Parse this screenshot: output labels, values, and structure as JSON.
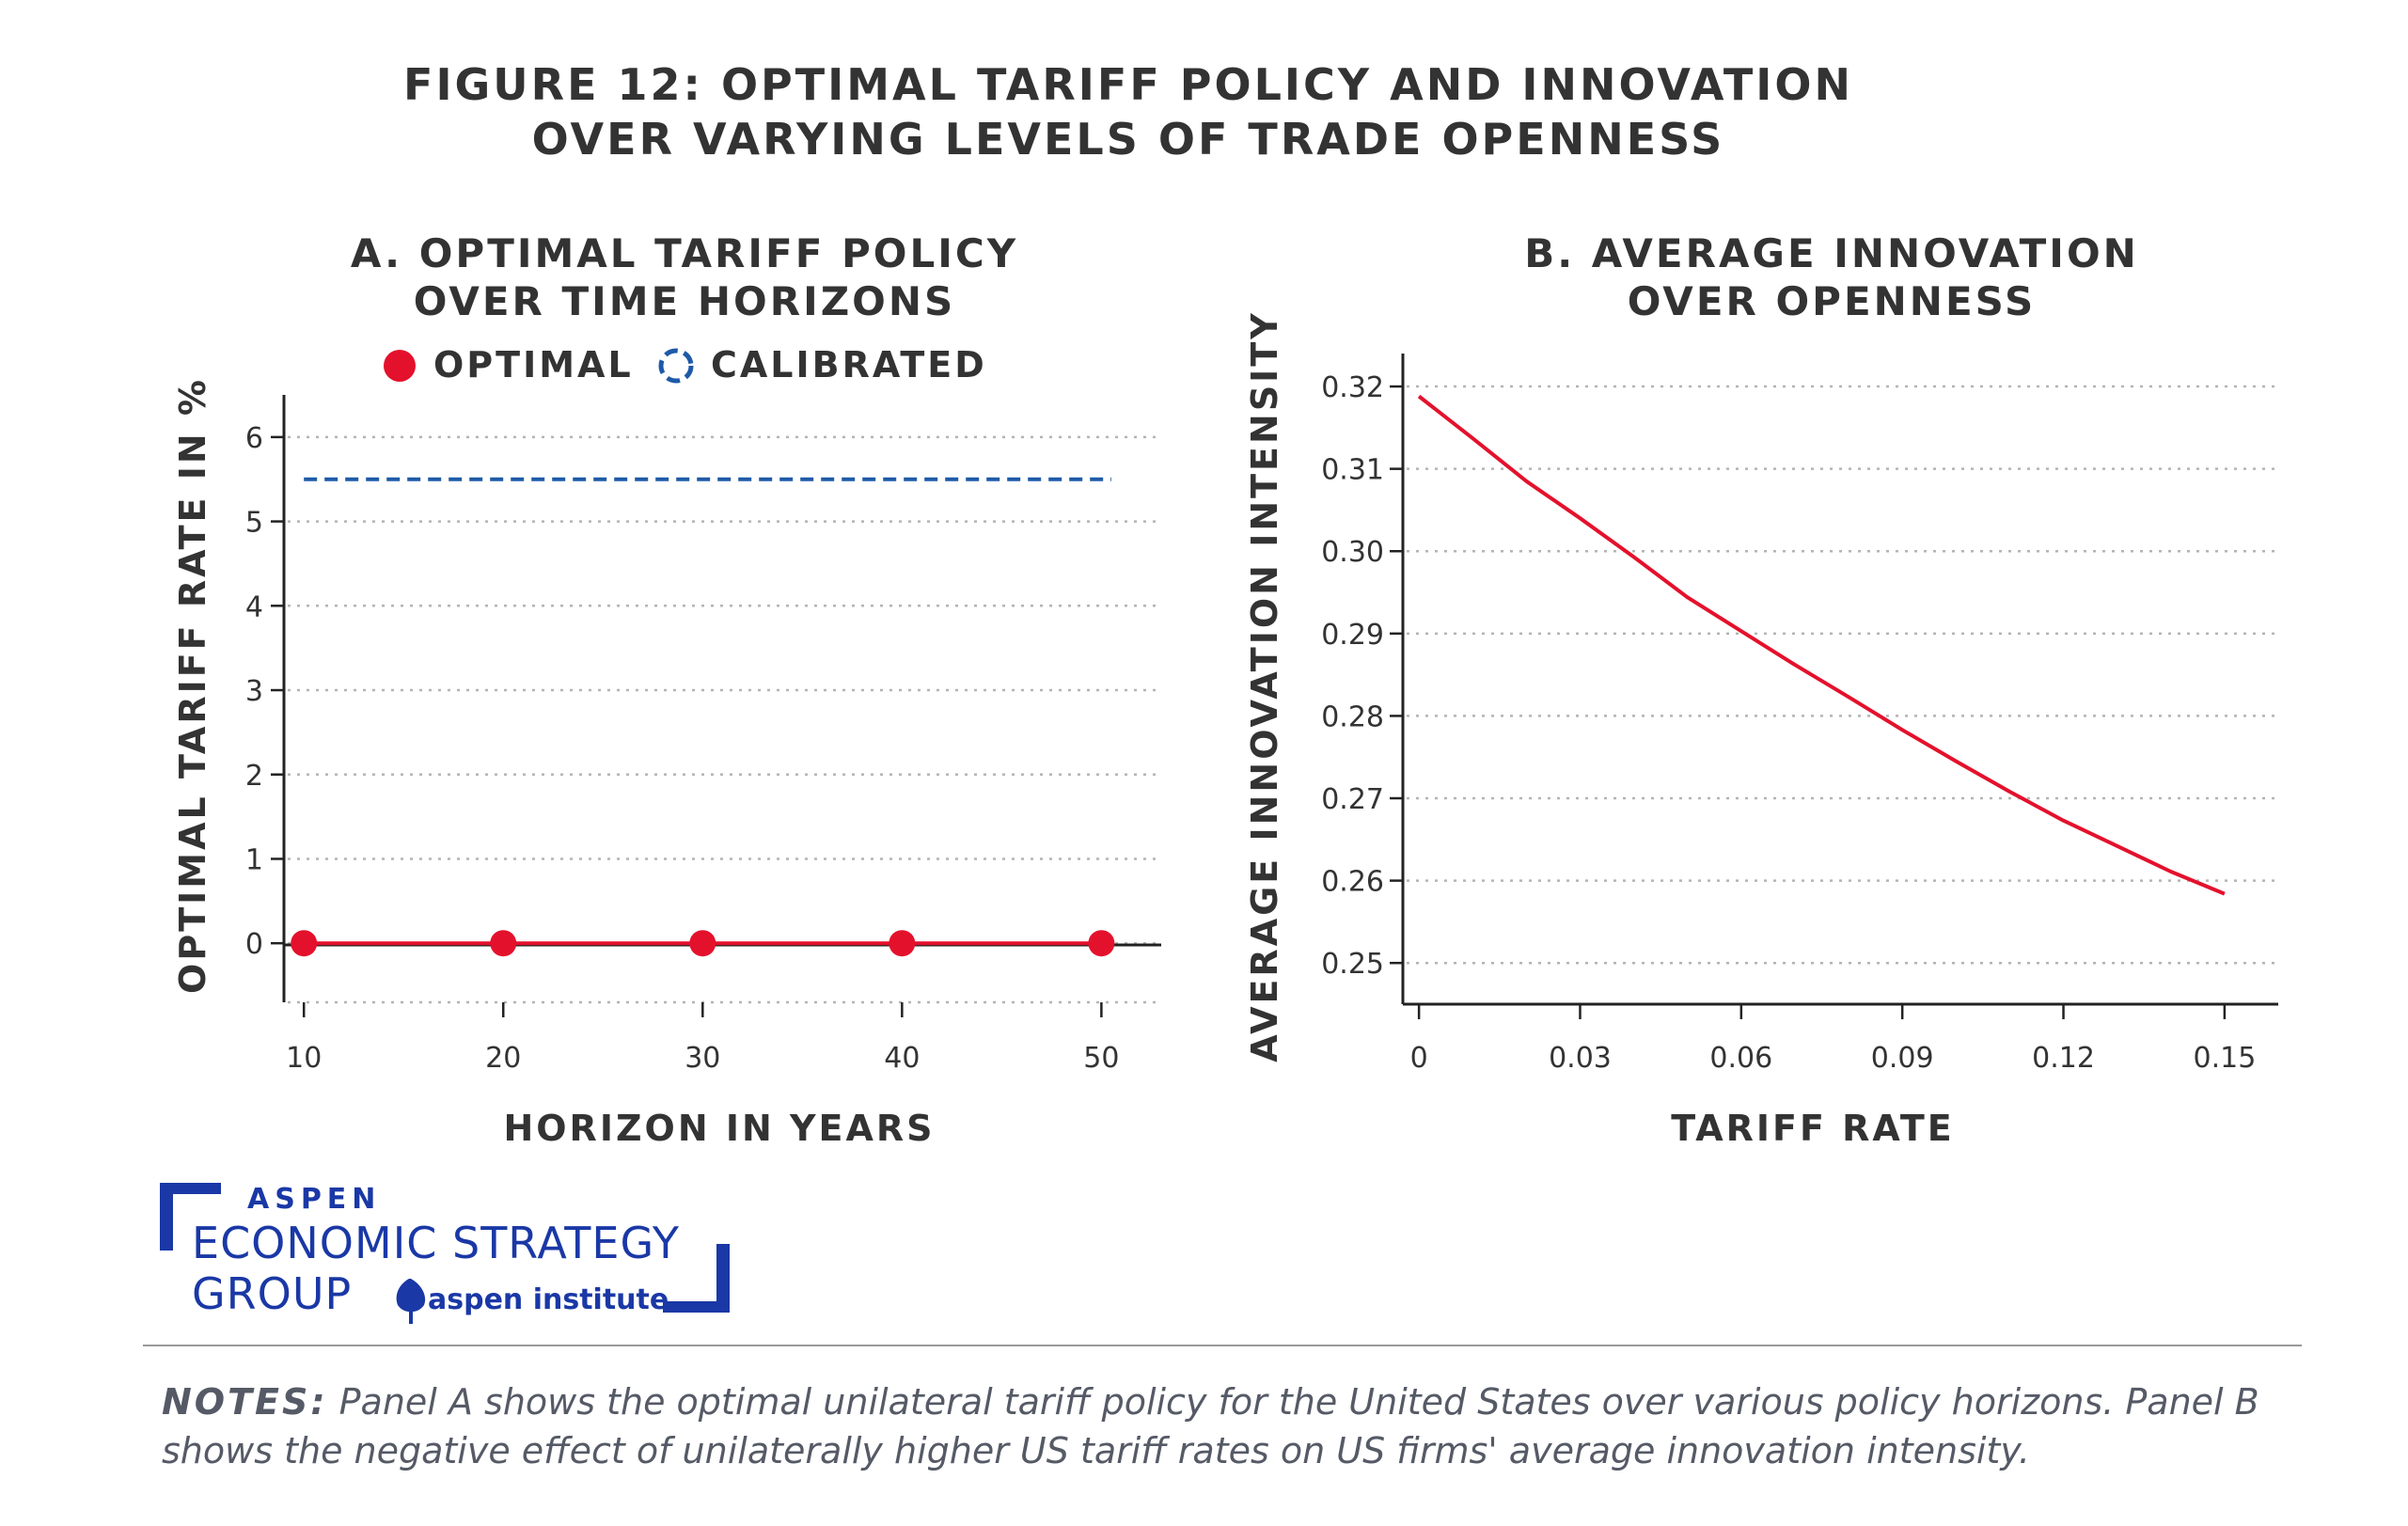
{
  "figure_title_line1": "FIGURE 12: OPTIMAL TARIFF POLICY AND INNOVATION",
  "figure_title_line2": "OVER VARYING LEVELS OF TRADE OPENNESS",
  "colors": {
    "optimal": "#e4112c",
    "calibrated": "#1e5aa8",
    "text": "#333333",
    "brand_blue": "#1a38a6",
    "notes_text": "#555a66",
    "grid": "#b4b4b4"
  },
  "chart_data": [
    {
      "type": "line",
      "panel": "A",
      "title_line1": "A. OPTIMAL TARIFF POLICY",
      "title_line2": "OVER TIME HORIZONS",
      "xlabel": "HORIZON IN YEARS",
      "ylabel": "OPTIMAL TARIFF RATE IN %",
      "xlim": [
        9,
        53
      ],
      "ylim": [
        -0.7,
        6.5
      ],
      "x_ticks": [
        10,
        20,
        30,
        40,
        50
      ],
      "y_ticks": [
        0,
        1,
        2,
        3,
        4,
        5,
        6
      ],
      "x_tick_labels": [
        "10",
        "20",
        "30",
        "40",
        "50"
      ],
      "y_tick_labels": [
        "0",
        "1",
        "2",
        "3",
        "4",
        "5",
        "6"
      ],
      "grid": "horizontal dotted",
      "legend_position": "top",
      "series": [
        {
          "name": "OPTIMAL",
          "style": "solid line with circle markers",
          "x": [
            10,
            20,
            30,
            40,
            50
          ],
          "values": [
            0,
            0,
            0,
            0,
            0
          ]
        },
        {
          "name": "CALIBRATED",
          "style": "dashed",
          "x": [
            10,
            50.5
          ],
          "values": [
            5.5,
            5.5
          ]
        }
      ]
    },
    {
      "type": "line",
      "panel": "B",
      "title_line1": "B. AVERAGE INNOVATION",
      "title_line2": "OVER OPENNESS",
      "xlabel": "TARIFF RATE",
      "ylabel": "AVERAGE INNOVATION INTENSITY",
      "xlim": [
        -0.003,
        0.16
      ],
      "ylim": [
        0.245,
        0.324
      ],
      "x_ticks": [
        0,
        0.03,
        0.06,
        0.09,
        0.12,
        0.15
      ],
      "y_ticks": [
        0.25,
        0.26,
        0.27,
        0.28,
        0.29,
        0.3,
        0.31,
        0.32
      ],
      "x_tick_labels": [
        "0",
        "0.03",
        "0.06",
        "0.09",
        "0.12",
        "0.15"
      ],
      "y_tick_labels": [
        "0.25",
        "0.26",
        "0.27",
        "0.28",
        "0.29",
        "0.30",
        "0.31",
        "0.32"
      ],
      "grid": "horizontal dotted",
      "series": [
        {
          "name": "Average innovation intensity",
          "x": [
            0,
            0.01,
            0.02,
            0.03,
            0.04,
            0.05,
            0.06,
            0.07,
            0.08,
            0.09,
            0.1,
            0.11,
            0.12,
            0.13,
            0.14,
            0.15
          ],
          "values": [
            0.3188,
            0.3137,
            0.3085,
            0.304,
            0.2993,
            0.2944,
            0.2903,
            0.2862,
            0.2823,
            0.2783,
            0.2745,
            0.2708,
            0.2673,
            0.2642,
            0.2611,
            0.2584
          ]
        }
      ]
    }
  ],
  "logo": {
    "line1": "ASPEN",
    "line2": "ECONOMIC STRATEGY",
    "line3": "GROUP",
    "institute": "aspen institute"
  },
  "notes": {
    "label": "NOTES:",
    "text": " Panel A shows the optimal unilateral tariff policy for the United States over various policy horizons. Panel B shows the negative effect of unilaterally higher US tariff rates on US firms' average innovation intensity."
  }
}
